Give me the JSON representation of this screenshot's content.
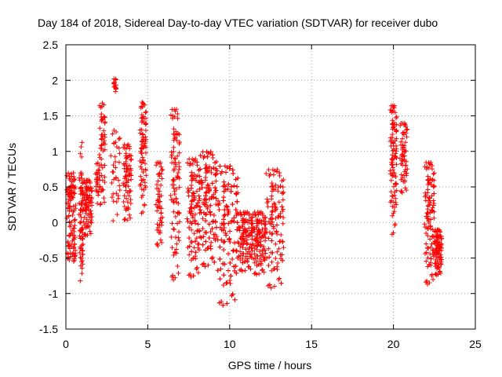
{
  "chart_data": {
    "type": "scatter",
    "title": "Day 184 of 2018, Sidereal Day-to-day VTEC variation (SDTVAR) for receiver dubo",
    "xlabel": "GPS time / hours",
    "ylabel": "SDTVAR / TECUs",
    "xlim": [
      0,
      25
    ],
    "ylim": [
      -1.5,
      2.5
    ],
    "xticks": [
      "0",
      "5",
      "10",
      "15",
      "20",
      "25"
    ],
    "yticks": [
      "-1.5",
      "-1",
      "-0.5",
      "0",
      "0.5",
      "1",
      "1.5",
      "2",
      "2.5"
    ],
    "grid": true,
    "marker": "+",
    "color": "#ff0000",
    "series_segments": [
      {
        "x0": 0.05,
        "x1": 0.6,
        "ylo": -0.55,
        "yhi": 0.7,
        "n": 120
      },
      {
        "x0": 0.8,
        "x1": 1.05,
        "ylo": -0.85,
        "yhi": 0.7,
        "n": 70
      },
      {
        "x0": 1.05,
        "x1": 1.6,
        "ylo": -0.2,
        "yhi": 0.6,
        "n": 90
      },
      {
        "x0": 0.85,
        "x1": 1.0,
        "ylo": 0.9,
        "yhi": 1.15,
        "n": 4
      },
      {
        "x0": 1.8,
        "x1": 2.05,
        "ylo": 0.25,
        "yhi": 0.85,
        "n": 25
      },
      {
        "x0": 2.05,
        "x1": 2.4,
        "ylo": 0.2,
        "yhi": 1.7,
        "n": 55
      },
      {
        "x0": 2.9,
        "x1": 3.1,
        "ylo": 1.8,
        "yhi": 2.02,
        "n": 14
      },
      {
        "x0": 2.7,
        "x1": 3.3,
        "ylo": 0.0,
        "yhi": 1.3,
        "n": 35
      },
      {
        "x0": 3.5,
        "x1": 4.0,
        "ylo": 0.0,
        "yhi": 1.1,
        "n": 75
      },
      {
        "x0": 4.5,
        "x1": 4.9,
        "ylo": 0.1,
        "yhi": 1.7,
        "n": 80
      },
      {
        "x0": 5.5,
        "x1": 5.9,
        "ylo": -0.35,
        "yhi": 0.85,
        "n": 55
      },
      {
        "x0": 6.4,
        "x1": 6.95,
        "ylo": -0.85,
        "yhi": 1.6,
        "n": 95
      },
      {
        "x0": 7.4,
        "x1": 8.2,
        "ylo": -0.8,
        "yhi": 0.9,
        "n": 150
      },
      {
        "x0": 8.2,
        "x1": 9.2,
        "ylo": -0.65,
        "yhi": 1.0,
        "n": 190
      },
      {
        "x0": 9.2,
        "x1": 10.5,
        "ylo": -1.2,
        "yhi": 0.8,
        "n": 250
      },
      {
        "x0": 10.5,
        "x1": 11.4,
        "ylo": -0.7,
        "yhi": 0.15,
        "n": 130
      },
      {
        "x0": 11.4,
        "x1": 12.2,
        "ylo": -0.75,
        "yhi": 0.15,
        "n": 110
      },
      {
        "x0": 12.2,
        "x1": 13.3,
        "ylo": -0.95,
        "yhi": 0.75,
        "n": 130
      },
      {
        "x0": 19.8,
        "x1": 20.2,
        "ylo": -0.2,
        "yhi": 1.65,
        "n": 95
      },
      {
        "x0": 20.4,
        "x1": 20.85,
        "ylo": 0.4,
        "yhi": 1.4,
        "n": 60
      },
      {
        "x0": 21.9,
        "x1": 22.5,
        "ylo": -0.9,
        "yhi": 0.85,
        "n": 120
      },
      {
        "x0": 22.5,
        "x1": 22.95,
        "ylo": -0.75,
        "yhi": -0.1,
        "n": 90
      }
    ]
  }
}
